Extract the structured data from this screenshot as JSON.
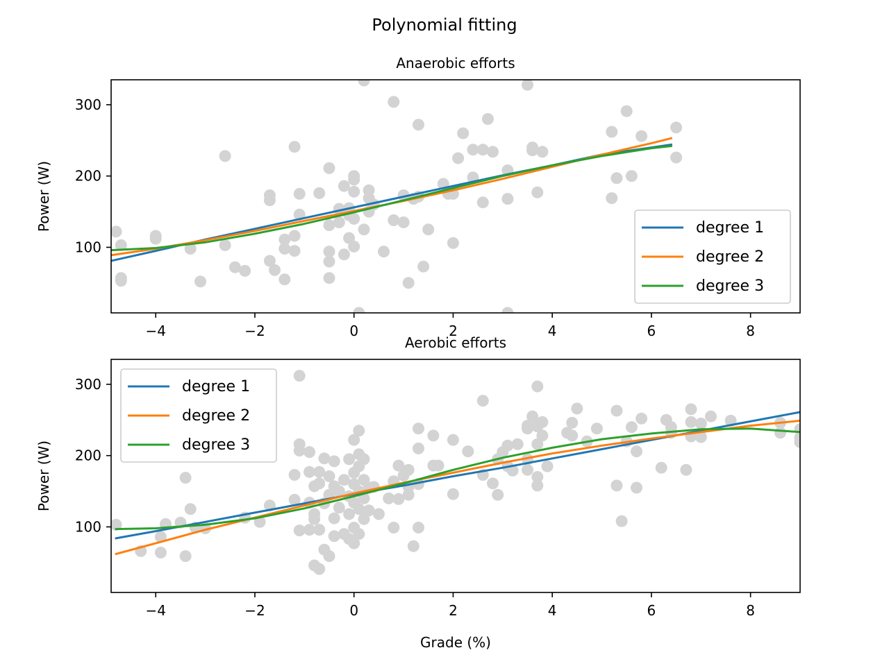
{
  "figure": {
    "title": "Polynomial fitting"
  },
  "colors": {
    "scatter": "#d3d3d3",
    "degree_1": "#1f77b4",
    "degree_2": "#ff7f0e",
    "degree_3": "#2ca02c",
    "frame": "#000000"
  },
  "chart_data": [
    {
      "type": "scatter",
      "title": "Anaerobic efforts",
      "xlabel": "",
      "ylabel": "Power (W)",
      "xlim": [
        -4.9,
        9.0
      ],
      "ylim": [
        8,
        335
      ],
      "xticks": [
        -4,
        -2,
        0,
        2,
        4,
        6,
        8
      ],
      "xtick_labels": [
        "−4",
        "−2",
        "0",
        "2",
        "4",
        "6",
        "8"
      ],
      "yticks": [
        100,
        200,
        300
      ],
      "ytick_labels": [
        "100",
        "200",
        "300"
      ],
      "grid": false,
      "legend": {
        "position": "lower-right",
        "entries": [
          "degree 1",
          "degree 2",
          "degree 3"
        ]
      },
      "points": [
        [
          -4.8,
          122
        ],
        [
          -4.7,
          103
        ],
        [
          -4.7,
          57
        ],
        [
          -4.7,
          53
        ],
        [
          -4.0,
          116
        ],
        [
          -4.0,
          112
        ],
        [
          -3.3,
          98
        ],
        [
          -3.1,
          52
        ],
        [
          -2.6,
          228
        ],
        [
          -2.6,
          103
        ],
        [
          -2.4,
          72
        ],
        [
          -2.2,
          67
        ],
        [
          -1.7,
          173
        ],
        [
          -1.7,
          166
        ],
        [
          -1.7,
          81
        ],
        [
          -1.6,
          68
        ],
        [
          -1.4,
          111
        ],
        [
          -1.4,
          98
        ],
        [
          -1.4,
          55
        ],
        [
          -1.2,
          241
        ],
        [
          -1.2,
          116
        ],
        [
          -1.2,
          95
        ],
        [
          -1.1,
          175
        ],
        [
          -1.1,
          146
        ],
        [
          -0.7,
          176
        ],
        [
          -0.5,
          211
        ],
        [
          -0.5,
          131
        ],
        [
          -0.5,
          94
        ],
        [
          -0.5,
          80
        ],
        [
          -0.5,
          57
        ],
        [
          -0.3,
          154
        ],
        [
          -0.3,
          135
        ],
        [
          -0.2,
          186
        ],
        [
          -0.2,
          90
        ],
        [
          -0.1,
          145
        ],
        [
          -0.1,
          155
        ],
        [
          0.0,
          200
        ],
        [
          0.0,
          195
        ],
        [
          0.0,
          178
        ],
        [
          0.0,
          140
        ],
        [
          -0.1,
          113
        ],
        [
          0.0,
          101
        ],
        [
          0.1,
          8
        ],
        [
          0.2,
          125
        ],
        [
          0.3,
          180
        ],
        [
          0.3,
          169
        ],
        [
          0.3,
          150
        ],
        [
          0.4,
          160
        ],
        [
          0.2,
          334
        ],
        [
          0.6,
          94
        ],
        [
          0.8,
          304
        ],
        [
          0.8,
          138
        ],
        [
          1.0,
          135
        ],
        [
          1.0,
          173
        ],
        [
          1.1,
          50
        ],
        [
          1.2,
          168
        ],
        [
          1.3,
          171
        ],
        [
          1.3,
          272
        ],
        [
          1.4,
          73
        ],
        [
          1.5,
          125
        ],
        [
          1.8,
          189
        ],
        [
          1.9,
          175
        ],
        [
          2.0,
          175
        ],
        [
          2.0,
          106
        ],
        [
          2.1,
          225
        ],
        [
          2.2,
          260
        ],
        [
          2.4,
          237
        ],
        [
          2.4,
          198
        ],
        [
          2.6,
          237
        ],
        [
          2.6,
          163
        ],
        [
          2.7,
          280
        ],
        [
          2.8,
          234
        ],
        [
          3.1,
          208
        ],
        [
          3.1,
          168
        ],
        [
          3.1,
          8
        ],
        [
          3.5,
          328
        ],
        [
          3.6,
          240
        ],
        [
          3.6,
          236
        ],
        [
          3.7,
          177
        ],
        [
          3.8,
          234
        ],
        [
          5.2,
          262
        ],
        [
          5.2,
          169
        ],
        [
          5.3,
          197
        ],
        [
          5.5,
          291
        ],
        [
          5.6,
          200
        ],
        [
          5.8,
          256
        ],
        [
          6.5,
          268
        ],
        [
          6.5,
          226
        ]
      ],
      "series": [
        {
          "name": "degree 1",
          "x": [
            -4.9,
            -4,
            -3,
            -2,
            -1,
            0,
            1,
            2,
            3,
            4,
            5,
            6,
            6.4
          ],
          "y": [
            81,
            95,
            111,
            126,
            141,
            156,
            171,
            186,
            201,
            215,
            230,
            240,
            244
          ]
        },
        {
          "name": "degree 2",
          "x": [
            -4.9,
            -4,
            -3,
            -2,
            -1,
            0,
            1,
            2,
            3,
            4,
            5,
            6,
            6.4
          ],
          "y": [
            89,
            98,
            110,
            123,
            137,
            151,
            165,
            180,
            196,
            213,
            230,
            246,
            253
          ]
        },
        {
          "name": "degree 3",
          "x": [
            -4.9,
            -4,
            -3,
            -2,
            -1,
            0,
            1,
            2,
            3,
            4,
            5,
            6,
            6.4
          ],
          "y": [
            96,
            99,
            107,
            119,
            133,
            149,
            166,
            183,
            200,
            215,
            228,
            239,
            242
          ]
        }
      ]
    },
    {
      "type": "scatter",
      "title": "Aerobic efforts",
      "xlabel": "Grade (%)",
      "ylabel": "Power (W)",
      "xlim": [
        -4.9,
        9.0
      ],
      "ylim": [
        8,
        335
      ],
      "xticks": [
        -4,
        -2,
        0,
        2,
        4,
        6,
        8
      ],
      "xtick_labels": [
        "−4",
        "−2",
        "0",
        "2",
        "4",
        "6",
        "8"
      ],
      "yticks": [
        100,
        200,
        300
      ],
      "ytick_labels": [
        "100",
        "200",
        "300"
      ],
      "grid": false,
      "legend": {
        "position": "upper-left",
        "entries": [
          "degree 1",
          "degree 2",
          "degree 3"
        ]
      },
      "points": [
        [
          -4.8,
          103
        ],
        [
          -4.3,
          66
        ],
        [
          -3.9,
          86
        ],
        [
          -3.9,
          64
        ],
        [
          -3.8,
          104
        ],
        [
          -3.5,
          106
        ],
        [
          -3.4,
          169
        ],
        [
          -3.4,
          59
        ],
        [
          -3.3,
          125
        ],
        [
          -3.2,
          99
        ],
        [
          -3.0,
          98
        ],
        [
          -2.2,
          113
        ],
        [
          -1.9,
          107
        ],
        [
          -1.7,
          130
        ],
        [
          -1.2,
          173
        ],
        [
          -1.2,
          138
        ],
        [
          -1.1,
          312
        ],
        [
          -1.1,
          216
        ],
        [
          -1.1,
          207
        ],
        [
          -1.1,
          95
        ],
        [
          -0.9,
          205
        ],
        [
          -0.9,
          177
        ],
        [
          -0.9,
          134
        ],
        [
          -0.9,
          96
        ],
        [
          -0.8,
          157
        ],
        [
          -0.8,
          118
        ],
        [
          -0.8,
          111
        ],
        [
          -0.8,
          46
        ],
        [
          -0.7,
          41
        ],
        [
          -0.7,
          177
        ],
        [
          -0.7,
          161
        ],
        [
          -0.7,
          96
        ],
        [
          -0.6,
          196
        ],
        [
          -0.6,
          133
        ],
        [
          -0.6,
          68
        ],
        [
          -0.5,
          171
        ],
        [
          -0.5,
          145
        ],
        [
          -0.5,
          59
        ],
        [
          -0.4,
          192
        ],
        [
          -0.4,
          157
        ],
        [
          -0.4,
          112
        ],
        [
          -0.4,
          87
        ],
        [
          -0.3,
          150
        ],
        [
          -0.3,
          127
        ],
        [
          -0.2,
          166
        ],
        [
          -0.2,
          90
        ],
        [
          -0.1,
          195
        ],
        [
          -0.1,
          143
        ],
        [
          -0.1,
          118
        ],
        [
          -0.1,
          83
        ],
        [
          0.0,
          222
        ],
        [
          0.0,
          176
        ],
        [
          0.0,
          160
        ],
        [
          0.0,
          134
        ],
        [
          0.0,
          99
        ],
        [
          0.0,
          77
        ],
        [
          0.1,
          235
        ],
        [
          0.1,
          202
        ],
        [
          0.1,
          185
        ],
        [
          0.1,
          150
        ],
        [
          0.1,
          125
        ],
        [
          0.1,
          90
        ],
        [
          0.2,
          195
        ],
        [
          0.2,
          166
        ],
        [
          0.2,
          140
        ],
        [
          0.2,
          111
        ],
        [
          0.3,
          155
        ],
        [
          0.3,
          123
        ],
        [
          0.4,
          156
        ],
        [
          0.5,
          118
        ],
        [
          0.7,
          140
        ],
        [
          0.8,
          164
        ],
        [
          0.8,
          99
        ],
        [
          0.9,
          139
        ],
        [
          0.9,
          186
        ],
        [
          1.0,
          172
        ],
        [
          1.1,
          180
        ],
        [
          1.1,
          156
        ],
        [
          1.1,
          145
        ],
        [
          1.2,
          73
        ],
        [
          1.3,
          238
        ],
        [
          1.3,
          210
        ],
        [
          1.3,
          160
        ],
        [
          1.3,
          99
        ],
        [
          1.6,
          228
        ],
        [
          1.6,
          186
        ],
        [
          1.7,
          186
        ],
        [
          2.0,
          222
        ],
        [
          2.0,
          146
        ],
        [
          2.3,
          206
        ],
        [
          2.6,
          277
        ],
        [
          2.6,
          173
        ],
        [
          2.8,
          161
        ],
        [
          2.9,
          145
        ],
        [
          2.9,
          195
        ],
        [
          3.0,
          205
        ],
        [
          3.1,
          214
        ],
        [
          3.1,
          185
        ],
        [
          3.2,
          179
        ],
        [
          3.3,
          216
        ],
        [
          3.5,
          242
        ],
        [
          3.5,
          238
        ],
        [
          3.5,
          195
        ],
        [
          3.5,
          180
        ],
        [
          3.6,
          255
        ],
        [
          3.7,
          297
        ],
        [
          3.7,
          241
        ],
        [
          3.7,
          216
        ],
        [
          3.7,
          170
        ],
        [
          3.7,
          158
        ],
        [
          3.8,
          247
        ],
        [
          3.8,
          228
        ],
        [
          3.9,
          185
        ],
        [
          4.3,
          232
        ],
        [
          4.4,
          246
        ],
        [
          4.4,
          228
        ],
        [
          4.5,
          266
        ],
        [
          4.7,
          220
        ],
        [
          4.9,
          238
        ],
        [
          5.3,
          263
        ],
        [
          5.3,
          158
        ],
        [
          5.4,
          108
        ],
        [
          5.5,
          220
        ],
        [
          5.6,
          240
        ],
        [
          5.7,
          206
        ],
        [
          5.7,
          155
        ],
        [
          5.8,
          252
        ],
        [
          6.2,
          183
        ],
        [
          6.3,
          250
        ],
        [
          6.4,
          240
        ],
        [
          6.4,
          232
        ],
        [
          6.7,
          180
        ],
        [
          6.8,
          265
        ],
        [
          6.8,
          247
        ],
        [
          6.8,
          227
        ],
        [
          7.0,
          245
        ],
        [
          7.0,
          226
        ],
        [
          7.2,
          255
        ],
        [
          7.6,
          249
        ],
        [
          8.6,
          246
        ],
        [
          8.6,
          232
        ],
        [
          9.0,
          237
        ],
        [
          9.0,
          225
        ],
        [
          9.0,
          219
        ]
      ],
      "series": [
        {
          "name": "degree 1",
          "x": [
            -4.8,
            -4,
            -3,
            -2,
            -1,
            0,
            1,
            2,
            3,
            4,
            5,
            6,
            7,
            8,
            9
          ],
          "y": [
            84,
            94,
            107,
            120,
            133,
            146,
            158,
            171,
            183,
            196,
            209,
            222,
            235,
            248,
            261
          ]
        },
        {
          "name": "degree 2",
          "x": [
            -4.8,
            -4,
            -3,
            -2,
            -1,
            0,
            1,
            2,
            3,
            4,
            5,
            6,
            7,
            8,
            9
          ],
          "y": [
            62,
            77,
            96,
            113,
            130,
            147,
            162,
            176,
            190,
            203,
            214,
            224,
            233,
            242,
            249
          ]
        },
        {
          "name": "degree 3",
          "x": [
            -4.8,
            -4,
            -3,
            -2,
            -1,
            0,
            1,
            2,
            3,
            4,
            5,
            6,
            7,
            8,
            9
          ],
          "y": [
            97,
            98,
            103,
            112,
            126,
            143,
            161,
            180,
            197,
            211,
            223,
            231,
            237,
            238,
            233
          ]
        }
      ]
    }
  ]
}
